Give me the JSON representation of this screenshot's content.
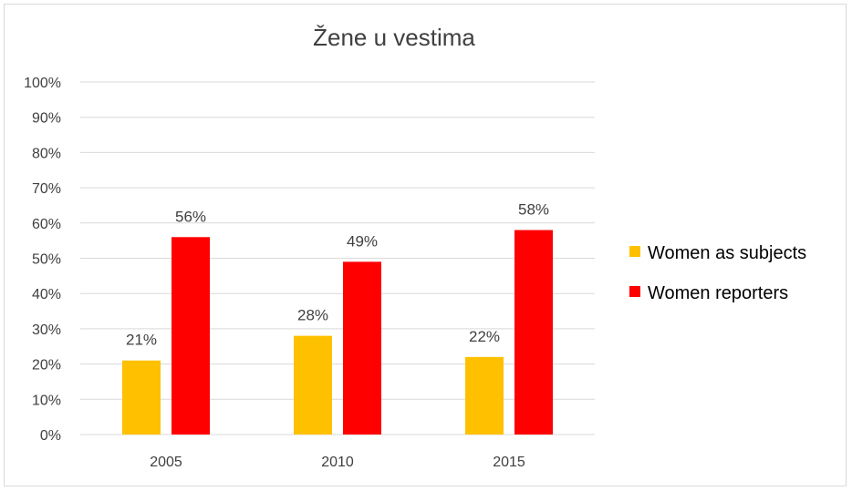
{
  "chart_data": {
    "type": "bar",
    "title": "Žene u vestima",
    "categories": [
      "2005",
      "2010",
      "2015"
    ],
    "series": [
      {
        "name": "Women as subjects",
        "values": [
          21,
          28,
          22
        ],
        "labels": [
          "21%",
          "28%",
          "22%"
        ],
        "color": "#FFC000"
      },
      {
        "name": "Women reporters",
        "values": [
          56,
          49,
          58
        ],
        "labels": [
          "56%",
          "49%",
          "58%"
        ],
        "color": "#FF0000"
      }
    ],
    "yticks": [
      "0%",
      "10%",
      "20%",
      "30%",
      "40%",
      "50%",
      "60%",
      "70%",
      "80%",
      "90%",
      "100%"
    ],
    "ylim": [
      0,
      100
    ],
    "grid": true,
    "legend_position": "right"
  }
}
